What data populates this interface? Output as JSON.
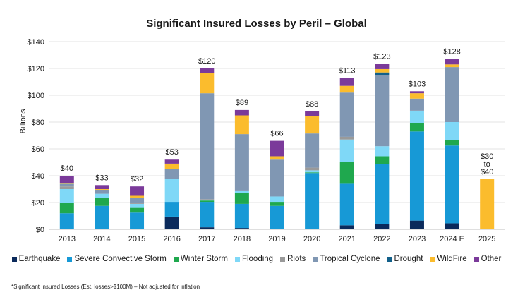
{
  "chart_data": {
    "type": "bar",
    "stacked": true,
    "title": "Significant Insured Losses by Peril – Global",
    "ylabel": "Billions",
    "ylim": [
      0,
      140
    ],
    "yticks": [
      "$0",
      "$20",
      "$40",
      "$60",
      "$80",
      "$100",
      "$120",
      "$140"
    ],
    "categories": [
      "2013",
      "2014",
      "2015",
      "2016",
      "2017",
      "2018",
      "2019",
      "2020",
      "2021",
      "2022",
      "2023",
      "2024 E",
      "2025"
    ],
    "totals": [
      "$40",
      "$33",
      "$32",
      "$53",
      "$120",
      "$89",
      "$66",
      "$88",
      "$113",
      "$123",
      "$103",
      "$128",
      "$30\nto\n$40"
    ],
    "series": [
      {
        "name": "Earthquake",
        "color": "#0b2a5b",
        "values": [
          0.5,
          0.5,
          0.5,
          9.5,
          1.5,
          1,
          0.5,
          0.5,
          3,
          4,
          6.5,
          4.5,
          0
        ]
      },
      {
        "name": "Severe Convective Storm",
        "color": "#1799d6",
        "values": [
          11.5,
          17,
          12,
          11,
          19,
          18,
          17,
          41.5,
          31,
          44.5,
          66.5,
          58,
          0
        ]
      },
      {
        "name": "Winter Storm",
        "color": "#1fa84e",
        "values": [
          8,
          6,
          3.5,
          0,
          1,
          8,
          3,
          0.5,
          16,
          6,
          6,
          4,
          0
        ]
      },
      {
        "name": "Flooding",
        "color": "#7fd8f7",
        "values": [
          10,
          3,
          3,
          17,
          0.5,
          2,
          4,
          1.5,
          17,
          7.5,
          9,
          13.5,
          0
        ]
      },
      {
        "name": "Riots",
        "color": "#9a9a9a",
        "values": [
          2,
          0,
          0.5,
          0,
          0.5,
          0,
          0,
          2,
          2,
          0,
          0.5,
          0,
          0
        ]
      },
      {
        "name": "Tropical Cyclone",
        "color": "#8097b3",
        "values": [
          2,
          3,
          4,
          7.5,
          79,
          42,
          27.5,
          25.5,
          33,
          53,
          9,
          41,
          0
        ]
      },
      {
        "name": "Drought",
        "color": "#12608a",
        "values": [
          0,
          0,
          0,
          0,
          0,
          0,
          0,
          0,
          0,
          2,
          0,
          0,
          0
        ]
      },
      {
        "name": "WildFire",
        "color": "#fbbc2d",
        "values": [
          0.5,
          0.5,
          1.5,
          4,
          15,
          14,
          2.5,
          13,
          5,
          2.5,
          4,
          2,
          37.5
        ]
      },
      {
        "name": "Other",
        "color": "#7b3a9a",
        "values": [
          5.5,
          3,
          7,
          3,
          3.5,
          4,
          11.5,
          3.5,
          6,
          4,
          1.5,
          4,
          0
        ]
      }
    ],
    "legend_position": "bottom",
    "grid": true
  },
  "footnote": "*Significant Insured Losses (Est. losses>$100M) – Not adjusted for inflation"
}
